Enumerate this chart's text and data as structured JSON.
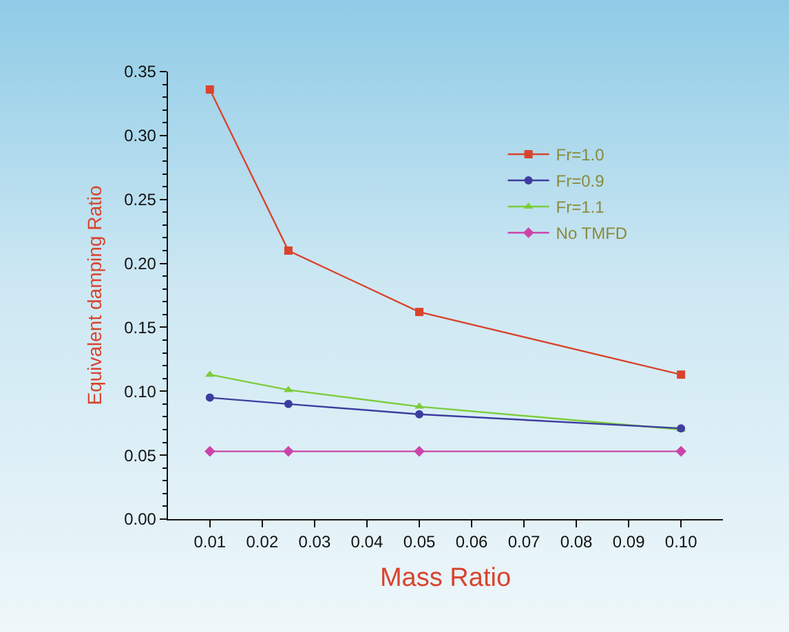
{
  "chart_data": {
    "type": "line",
    "xlabel": "Mass Ratio",
    "ylabel": "Equivalent damping Ratio",
    "x": [
      0.01,
      0.025,
      0.05,
      0.1
    ],
    "series": [
      {
        "name": "Fr=1.0",
        "color": "#d9442e",
        "marker": "square",
        "values": [
          0.336,
          0.21,
          0.162,
          0.113
        ]
      },
      {
        "name": "Fr=0.9",
        "color": "#3d3da0",
        "marker": "circle",
        "values": [
          0.095,
          0.09,
          0.082,
          0.071
        ]
      },
      {
        "name": "Fr=1.1",
        "color": "#7ccc3c",
        "marker": "triangle",
        "values": [
          0.113,
          0.101,
          0.088,
          0.07
        ]
      },
      {
        "name": "No TMFD",
        "color": "#cc44aa",
        "marker": "diamond",
        "values": [
          0.053,
          0.053,
          0.053,
          0.053
        ]
      }
    ],
    "xlim": [
      0.002,
      0.108
    ],
    "xticks": [
      0.01,
      0.02,
      0.03,
      0.04,
      0.05,
      0.06,
      0.07,
      0.08,
      0.09,
      {
        "value": 0.1,
        "label": "0.10"
      }
    ],
    "ylim": [
      0,
      0.35
    ],
    "yticks": [
      {
        "value": 0,
        "label": "0.00"
      },
      0.05,
      {
        "value": 0.1,
        "label": "0.10"
      },
      0.15,
      {
        "value": 0.2,
        "label": "0.20"
      },
      0.25,
      {
        "value": 0.3,
        "label": "0.30"
      },
      0.35
    ],
    "grid": false,
    "legend": "top right",
    "line_style": "solid"
  }
}
